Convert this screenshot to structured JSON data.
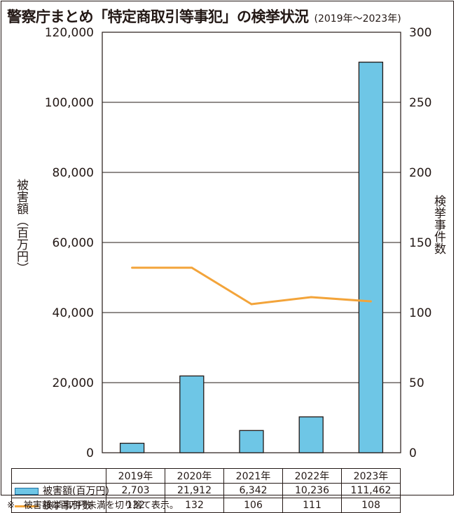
{
  "title": "警察庁まとめ「特定商取引等事犯」の検挙状況",
  "title_sub": "(2019年～2023年)",
  "footnote": "※　被害額は百万円未満を切り捨て表示。",
  "chart_data": {
    "type": "bar",
    "categories": [
      "2019年",
      "2020年",
      "2021年",
      "2022年",
      "2023年"
    ],
    "series": [
      {
        "name": "被害額(百万円)",
        "type": "bar",
        "axis": "left",
        "values": [
          2703,
          21912,
          6342,
          10236,
          111462
        ],
        "labels": [
          "2,703",
          "21,912",
          "6,342",
          "10,236",
          "111,462"
        ]
      },
      {
        "name": "検挙事件数",
        "type": "line",
        "axis": "right",
        "values": [
          132,
          132,
          106,
          111,
          108
        ],
        "labels": [
          "132",
          "132",
          "106",
          "111",
          "108"
        ]
      }
    ],
    "ylabel": "被害額（百万円）",
    "y2label": "検挙事件数",
    "ylim": [
      0,
      120000
    ],
    "y2lim": [
      0,
      300
    ],
    "yticks": [
      "0",
      "20,000",
      "40,000",
      "60,000",
      "80,000",
      "100,000",
      "120,000"
    ],
    "y2ticks": [
      "0",
      "50",
      "100",
      "150",
      "200",
      "250",
      "300"
    ],
    "grid": true,
    "legend": "table-below",
    "colors": {
      "bar": "#6ec6e6",
      "bar_edge": "#231815",
      "line": "#f3a43a",
      "grid": "#231815"
    }
  }
}
